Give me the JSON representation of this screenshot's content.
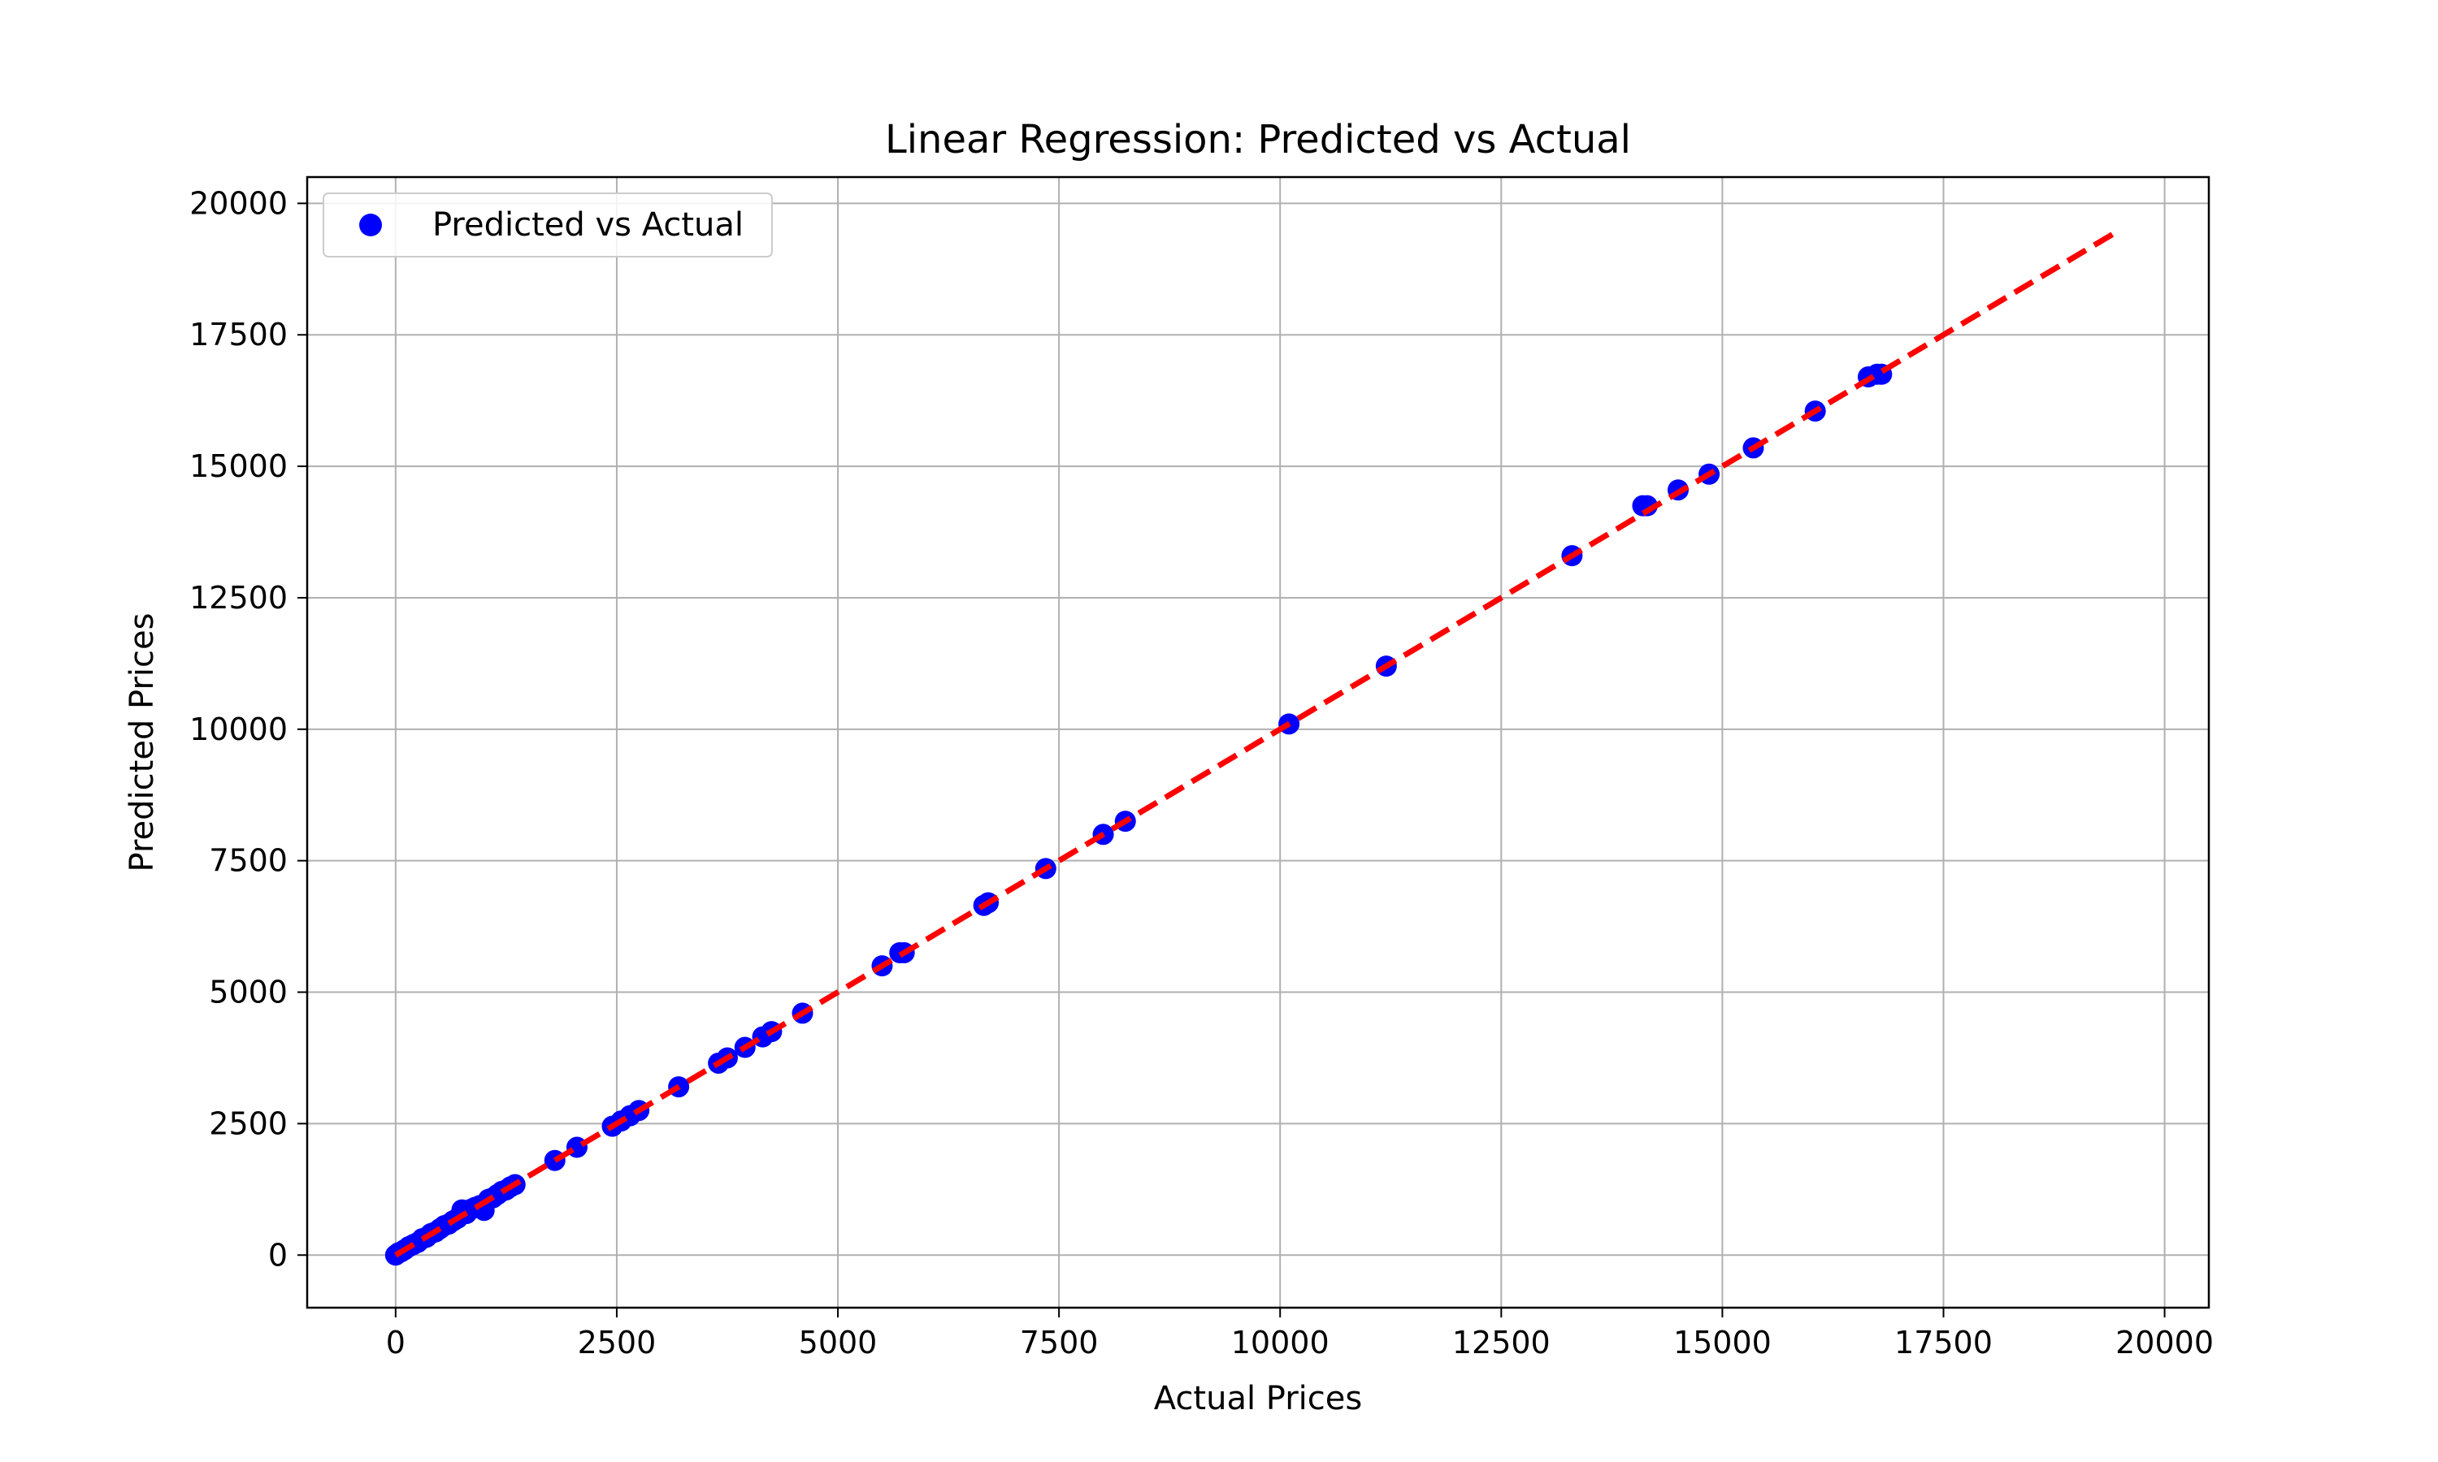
{
  "chart_data": {
    "type": "scatter",
    "title": "Linear Regression: Predicted vs Actual",
    "xlabel": "Actual Prices",
    "ylabel": "Predicted Prices",
    "xlim": [
      -1000,
      20500
    ],
    "ylim": [
      -1000,
      20500
    ],
    "xticks": [
      0,
      2500,
      5000,
      7500,
      10000,
      12500,
      15000,
      17500,
      20000
    ],
    "yticks": [
      0,
      2500,
      5000,
      7500,
      10000,
      12500,
      15000,
      17500,
      20000
    ],
    "grid": true,
    "legend": {
      "placement": "top-left",
      "entries": [
        "Predicted vs Actual"
      ]
    },
    "series": [
      {
        "name": "Predicted vs Actual",
        "kind": "scatter",
        "color": "#0000ff",
        "x": [
          0,
          30,
          60,
          100,
          150,
          200,
          250,
          300,
          350,
          400,
          450,
          500,
          550,
          600,
          650,
          700,
          750,
          800,
          850,
          900,
          950,
          1000,
          1050,
          1100,
          1150,
          1200,
          1250,
          1300,
          1350,
          1800,
          2050,
          2450,
          2550,
          2650,
          2750,
          3200,
          3650,
          3750,
          3950,
          4150,
          4250,
          4600,
          5500,
          5700,
          5750,
          6650,
          6700,
          7350,
          8000,
          8250,
          10100,
          11200,
          13300,
          14100,
          14150,
          14500,
          14850,
          15350,
          16050,
          16650,
          16750,
          16800
        ],
        "y": [
          0,
          40,
          60,
          100,
          160,
          200,
          240,
          310,
          340,
          410,
          440,
          500,
          560,
          590,
          650,
          700,
          860,
          790,
          870,
          910,
          940,
          850,
          1060,
          1090,
          1150,
          1210,
          1240,
          1300,
          1340,
          1800,
          2050,
          2450,
          2550,
          2650,
          2750,
          3200,
          3650,
          3750,
          3950,
          4150,
          4250,
          4600,
          5500,
          5750,
          5750,
          6650,
          6700,
          7350,
          8000,
          8250,
          10100,
          11200,
          13300,
          14250,
          14250,
          14550,
          14850,
          15350,
          16050,
          16700,
          16750,
          16750
        ]
      },
      {
        "name": "",
        "kind": "line",
        "style": "dashed",
        "color": "#ff0000",
        "x": [
          0,
          19500
        ],
        "y": [
          0,
          19500
        ]
      }
    ]
  }
}
